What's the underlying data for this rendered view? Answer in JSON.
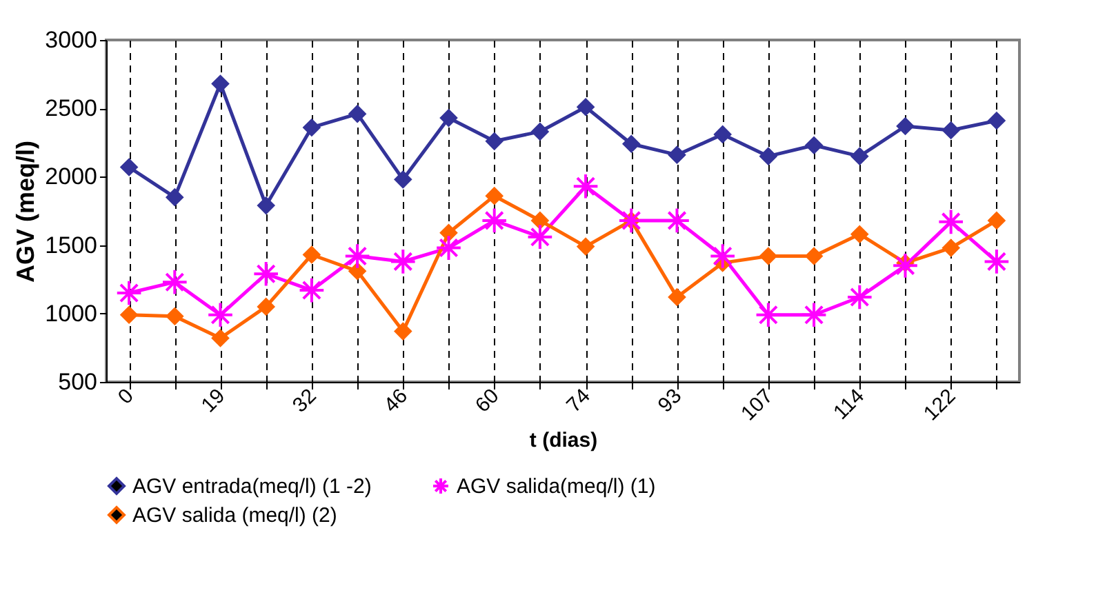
{
  "chart_data": {
    "type": "line",
    "xlabel": "t (dias)",
    "ylabel": "AGV (meq/l)",
    "categories": [
      "0",
      null,
      "19",
      null,
      "32",
      null,
      "46",
      null,
      "60",
      null,
      "74",
      null,
      "93",
      null,
      "107",
      null,
      "114",
      null,
      "122",
      null
    ],
    "ylim": [
      500,
      3000
    ],
    "yticks": [
      500,
      1000,
      1500,
      2000,
      2500,
      3000
    ],
    "grid": "x",
    "legend": "bottom",
    "marker": "diamond",
    "series": [
      {
        "name": "AGV entrada(meq/l) (1 -2)",
        "color": "#333399",
        "values": [
          2070,
          1850,
          2680,
          1790,
          2360,
          2460,
          1980,
          2430,
          2260,
          2330,
          2510,
          2240,
          2160,
          2310,
          2150,
          2230,
          2150,
          2370,
          2340,
          2410
        ]
      },
      {
        "name": "AGV salida(meq/l) (1)",
        "color": "#ff00ff",
        "marker": "cross",
        "values": [
          1150,
          1230,
          990,
          1290,
          1170,
          1420,
          1380,
          1480,
          1680,
          1560,
          1930,
          1680,
          1680,
          1420,
          990,
          990,
          1120,
          1350,
          1670,
          1380
        ]
      },
      {
        "name": "AGV salida (meq/l) (2)",
        "color": "#ff6600",
        "values": [
          990,
          980,
          820,
          1050,
          1430,
          1310,
          870,
          1590,
          1860,
          1680,
          1490,
          1680,
          1120,
          1370,
          1420,
          1420,
          1580,
          1370,
          1480,
          1680
        ]
      }
    ]
  }
}
